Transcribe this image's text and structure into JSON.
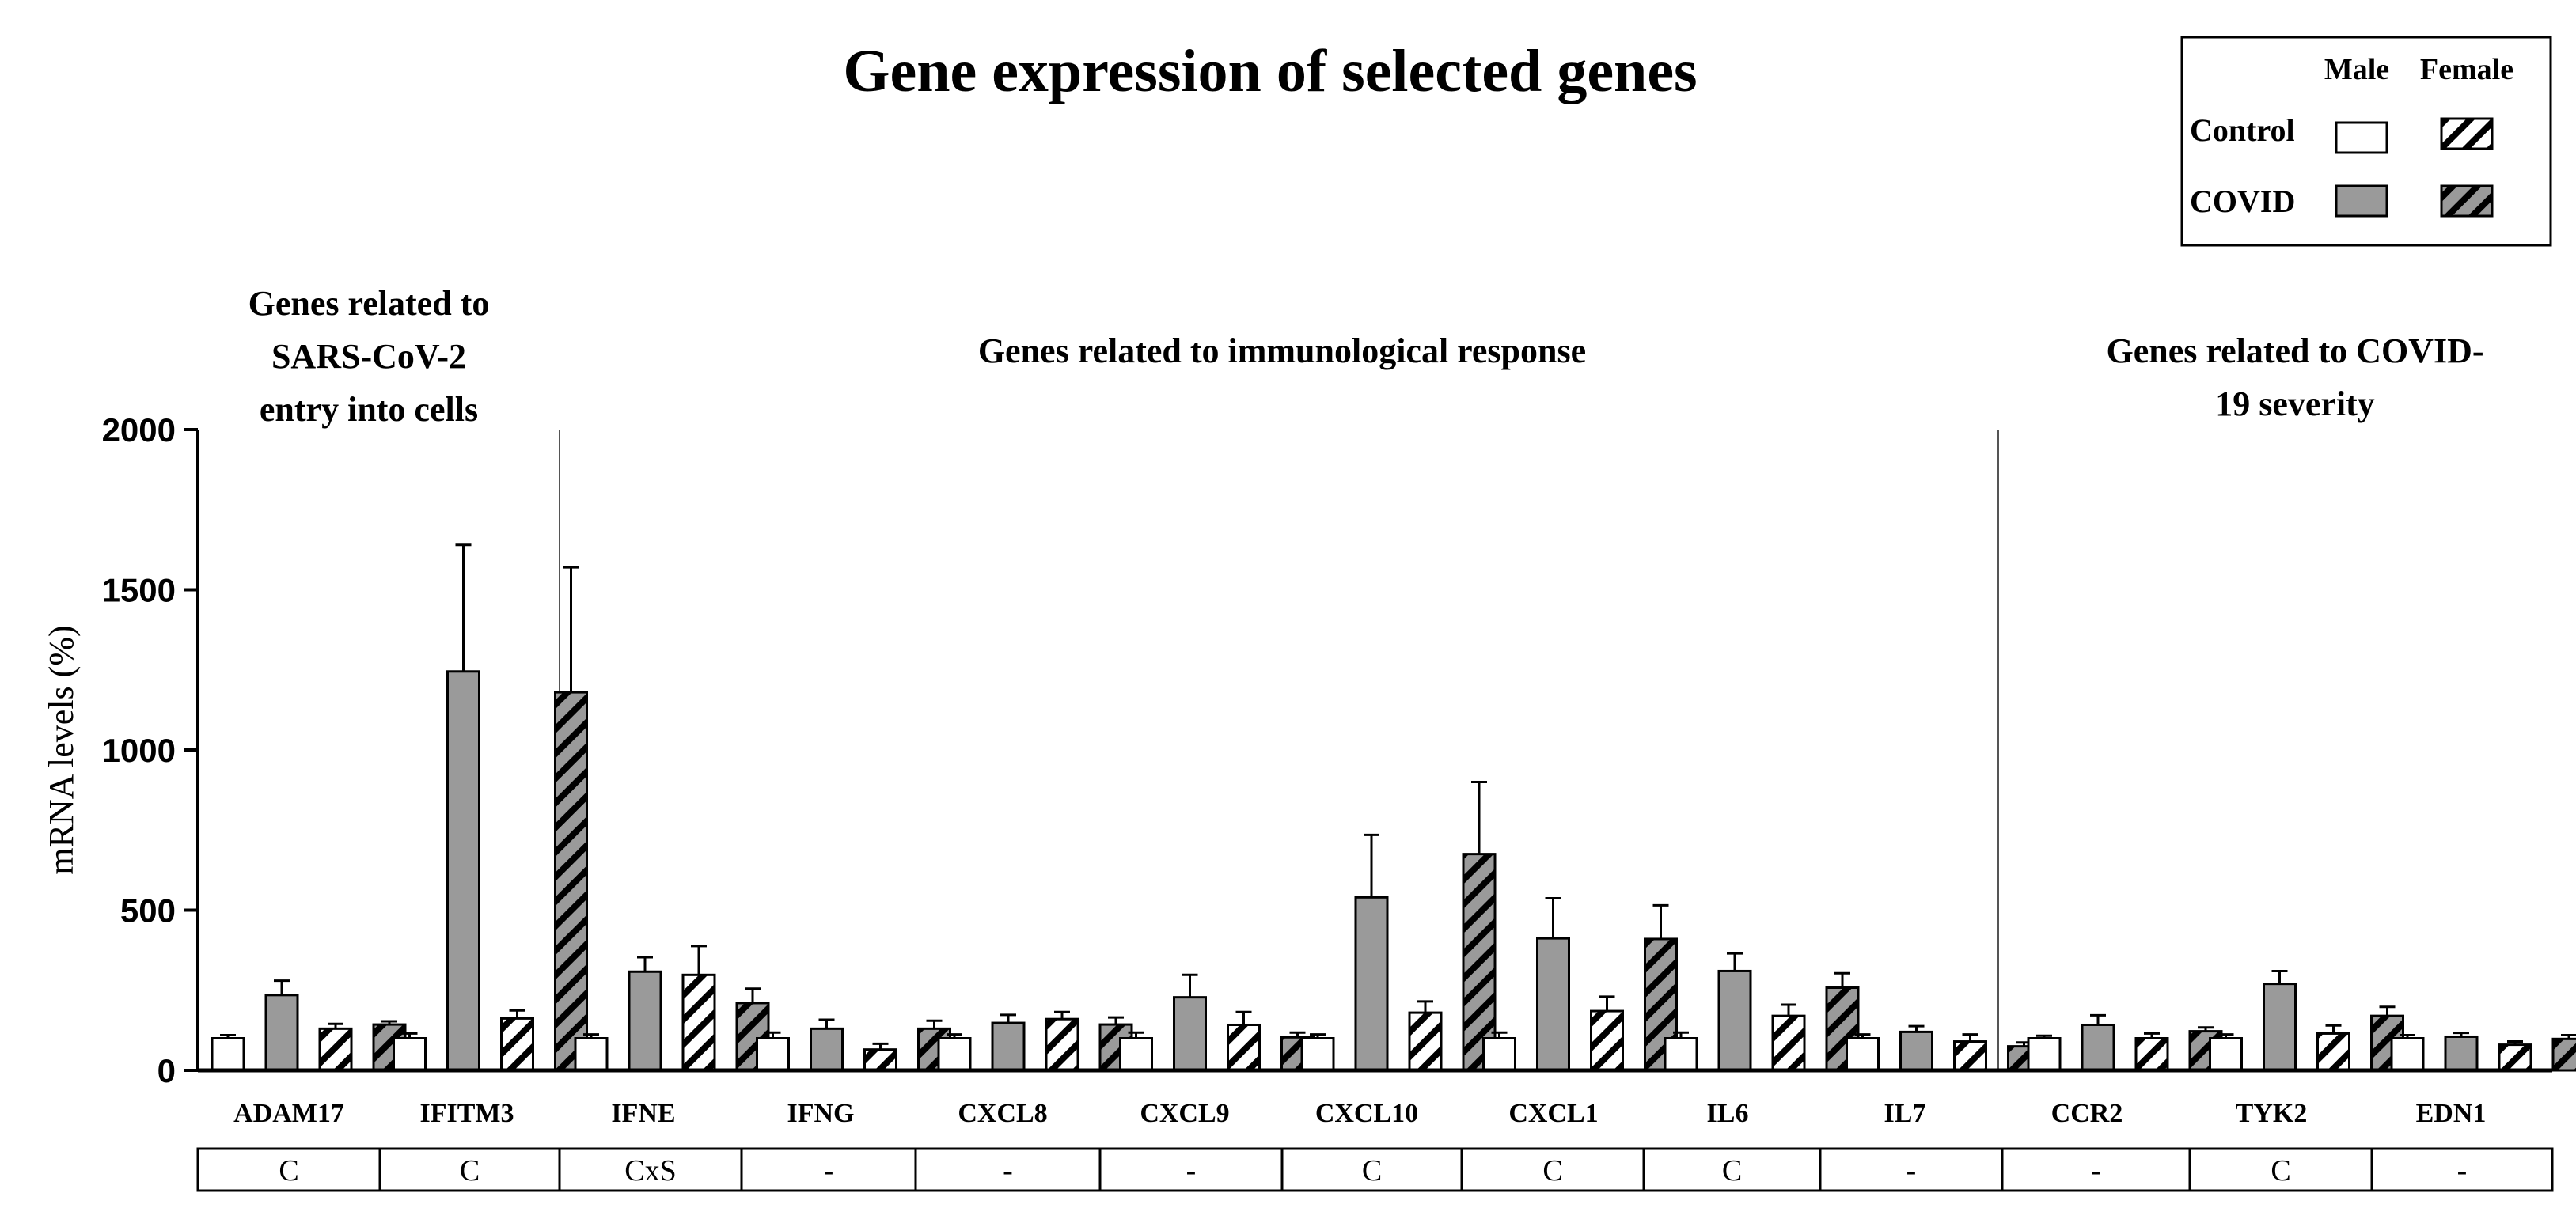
{
  "chart_data": {
    "type": "bar",
    "title": "Gene expression of selected genes",
    "ylabel": "mRNA levels (%)",
    "xlabel": "",
    "ylim": [
      0,
      2000
    ],
    "yticks": [
      0,
      500,
      1000,
      1500,
      2000
    ],
    "legend": {
      "placement": "top-right",
      "col_headers": [
        "Male",
        "Female"
      ],
      "row_labels": [
        "Control",
        "COVID"
      ]
    },
    "series": [
      {
        "name": "Control Male",
        "fill": "white",
        "values": [
          100,
          100,
          100,
          100,
          100,
          100,
          100,
          100,
          100,
          100,
          100,
          100,
          100
        ],
        "errors": [
          10,
          15,
          12,
          18,
          12,
          18,
          12,
          18,
          18,
          12,
          8,
          12,
          10
        ]
      },
      {
        "name": "COVID Male",
        "fill": "gray",
        "values": [
          235,
          1245,
          308,
          130,
          148,
          228,
          540,
          412,
          310,
          120,
          142,
          270,
          105
        ],
        "errors": [
          45,
          395,
          45,
          28,
          25,
          70,
          195,
          125,
          55,
          18,
          30,
          40,
          12
        ]
      },
      {
        "name": "Control Female",
        "fill": "white-hatched",
        "values": [
          130,
          162,
          298,
          65,
          160,
          142,
          180,
          185,
          170,
          90,
          100,
          115,
          80
        ],
        "errors": [
          15,
          25,
          90,
          18,
          22,
          40,
          35,
          45,
          35,
          22,
          15,
          25,
          10
        ]
      },
      {
        "name": "COVID Female",
        "fill": "gray-hatched",
        "values": [
          143,
          1180,
          210,
          130,
          143,
          103,
          675,
          410,
          258,
          75,
          122,
          170,
          98
        ],
        "errors": [
          10,
          390,
          45,
          25,
          22,
          15,
          225,
          105,
          45,
          12,
          12,
          28,
          12
        ]
      }
    ],
    "categories": [
      "ADAM17",
      "IFITM3",
      "IFNE",
      "IFNG",
      "CXCL8",
      "CXCL9",
      "CXCL10",
      "CXCL1",
      "IL6",
      "IL7",
      "CCR2",
      "TYK2",
      "EDN1"
    ],
    "significance": [
      "C",
      "C",
      "CxS",
      "-",
      "-",
      "-",
      "C",
      "C",
      "C",
      "-",
      "-",
      "C",
      "-"
    ],
    "groups": [
      {
        "label": "Genes related to SARS-CoV-2 entry into cells",
        "lines": [
          "Genes related to",
          "SARS-CoV-2",
          "entry into cells"
        ]
      },
      {
        "label": "Genes related to immunological response",
        "lines": [
          "Genes related to immunological response"
        ]
      },
      {
        "label": "Genes related to COVID-19 severity",
        "lines": [
          "Genes related to COVID-",
          "19 severity"
        ]
      }
    ]
  }
}
